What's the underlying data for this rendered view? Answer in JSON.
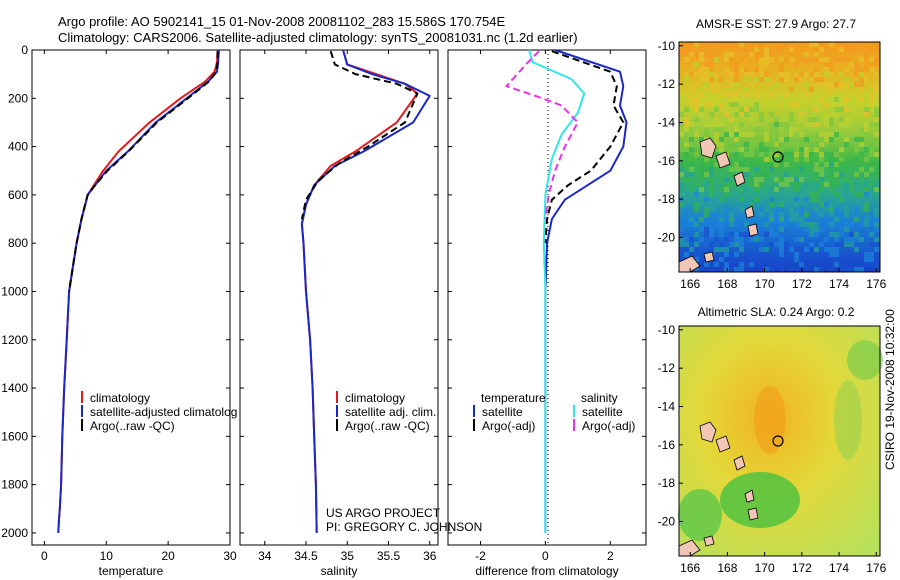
{
  "header": {
    "line1": "Argo profile: AO 5902141_15 01-Nov-2008 20081102_283 15.586S 170.754E",
    "line2": "Climatology: CARS2006. Satellite-adjusted climatology: synTS_20081031.nc (1.2d earlier)"
  },
  "credit": {
    "line1": "US ARGO PROJECT",
    "line2": "PI: GREGORY C. JOHNSON"
  },
  "side_stamp": "CSIRO 19-Nov-2008 10:32:00",
  "colors": {
    "clim": "#e41a1c",
    "sat": "#1a28c8",
    "argo": "#000000",
    "sat_sal": "#33e6e6",
    "argo_sal": "#e633e6"
  },
  "chart_data": [
    {
      "type": "line",
      "xlabel": "temperature",
      "xlim": [
        -2,
        30
      ],
      "ylim": [
        2050,
        0
      ],
      "xticks": [
        0,
        10,
        20,
        30
      ],
      "yticks": [
        0,
        200,
        400,
        600,
        800,
        1000,
        1200,
        1400,
        1600,
        1800,
        2000
      ],
      "legend": {
        "position": "lower-left",
        "entries": [
          "climatology",
          "satellite-adjusted climatolog",
          "Argo(..raw -QC)"
        ]
      },
      "series": [
        {
          "name": "climatology",
          "color": "#e41a1c",
          "x": [
            28.0,
            27.9,
            27.5,
            26.0,
            22.0,
            17.0,
            12.0,
            9.5,
            8.0,
            7.0,
            6.0,
            5.2,
            4.6,
            4.0,
            3.6,
            3.2,
            2.9,
            2.7,
            2.5,
            2.35,
            2.25
          ],
          "y": [
            0,
            50,
            90,
            130,
            200,
            300,
            420,
            500,
            560,
            600,
            700,
            800,
            900,
            1000,
            1200,
            1400,
            1600,
            1800,
            1900,
            1950,
            2000
          ]
        },
        {
          "name": "satellite-adjusted climatology",
          "color": "#1a28c8",
          "x": [
            28.2,
            28.1,
            27.9,
            26.5,
            23.0,
            18.0,
            13.5,
            10.0,
            8.2,
            7.0,
            6.0,
            5.2,
            4.6,
            4.0,
            3.6,
            3.2,
            2.9,
            2.7,
            2.5,
            2.35,
            2.25
          ],
          "y": [
            0,
            50,
            90,
            130,
            200,
            300,
            420,
            500,
            560,
            600,
            700,
            800,
            900,
            1000,
            1200,
            1400,
            1600,
            1800,
            1900,
            1950,
            2000
          ]
        },
        {
          "name": "Argo(..raw -QC)",
          "color": "#000000",
          "dashed": true,
          "x": [
            28.0,
            28.0,
            27.8,
            26.6,
            23.2,
            18.2,
            13.6,
            10.2,
            8.2,
            7.0,
            6.0,
            5.2,
            4.6,
            4.0
          ],
          "y": [
            5,
            50,
            90,
            130,
            200,
            300,
            420,
            500,
            560,
            600,
            700,
            800,
            900,
            1000
          ]
        }
      ]
    },
    {
      "type": "line",
      "xlabel": "salinity",
      "xlim": [
        33.7,
        36.1
      ],
      "ylim": [
        2050,
        0
      ],
      "xticks": [
        34,
        34.5,
        35,
        35.5,
        36
      ],
      "yticks": [
        0,
        200,
        400,
        600,
        800,
        1000,
        1200,
        1400,
        1600,
        1800,
        2000
      ],
      "legend": {
        "position": "lower-right",
        "entries": [
          "climatology",
          "satellite adj. clim.",
          "Argo(..raw -QC)"
        ]
      },
      "series": [
        {
          "name": "climatology",
          "color": "#e41a1c",
          "x": [
            34.95,
            35.0,
            35.35,
            35.7,
            35.85,
            35.6,
            35.1,
            34.8,
            34.6,
            34.5,
            34.45,
            34.47,
            34.5,
            34.55,
            34.58,
            34.6,
            34.62,
            34.63
          ],
          "y": [
            0,
            60,
            100,
            140,
            180,
            300,
            420,
            480,
            560,
            640,
            720,
            800,
            1000,
            1200,
            1400,
            1600,
            1800,
            2000
          ]
        },
        {
          "name": "satellite adj. clim.",
          "color": "#1a28c8",
          "x": [
            34.95,
            35.0,
            35.3,
            35.7,
            36.0,
            35.8,
            35.2,
            34.85,
            34.6,
            34.5,
            34.45,
            34.47,
            34.5,
            34.55,
            34.58,
            34.6,
            34.62,
            34.63
          ],
          "y": [
            0,
            60,
            100,
            140,
            190,
            300,
            420,
            480,
            560,
            640,
            720,
            800,
            1000,
            1200,
            1400,
            1600,
            1800,
            2000
          ]
        },
        {
          "name": "Argo(..raw -QC)",
          "color": "#000000",
          "dashed": true,
          "x": [
            34.8,
            34.85,
            35.1,
            35.6,
            35.85,
            35.7,
            35.25,
            34.9,
            34.65,
            34.5,
            34.45
          ],
          "y": [
            5,
            60,
            100,
            140,
            180,
            300,
            400,
            470,
            540,
            620,
            700
          ]
        }
      ]
    },
    {
      "type": "line",
      "xlabel": "difference from climatology",
      "xlim": [
        -3,
        3.1
      ],
      "ylim": [
        2050,
        0
      ],
      "xticks": [
        -2,
        0,
        2
      ],
      "yticks": [
        0,
        200,
        400,
        600,
        800,
        1000,
        1200,
        1400,
        1600,
        1800,
        2000
      ],
      "legend": {
        "position": "lower-center",
        "headers": [
          "temperature",
          "salinity"
        ],
        "entries": [
          "satellite",
          "Argo(-adj)",
          "satellite",
          "Argo(-adj)"
        ]
      },
      "series": [
        {
          "name": "temperature satellite",
          "color": "#1a28c8",
          "x": [
            0.3,
            2.3,
            2.4,
            2.3,
            2.5,
            2.4,
            2.0,
            1.3,
            0.6,
            0.2,
            0.05,
            0.0,
            0.0
          ],
          "y": [
            0,
            90,
            150,
            230,
            300,
            400,
            500,
            560,
            620,
            700,
            800,
            1000,
            2000
          ]
        },
        {
          "name": "temperature Argo(-adj)",
          "color": "#000000",
          "dashed": true,
          "x": [
            0.2,
            2.0,
            2.2,
            2.1,
            2.4,
            2.0,
            1.4,
            0.7,
            0.2,
            0.05,
            0.0
          ],
          "y": [
            5,
            90,
            150,
            230,
            300,
            400,
            500,
            560,
            620,
            700,
            800
          ]
        },
        {
          "name": "salinity satellite",
          "color": "#33e6e6",
          "x": [
            -0.5,
            -0.4,
            0.8,
            1.2,
            1.0,
            0.5,
            0.2,
            0.0,
            -0.05,
            0.0,
            0.0,
            0.0
          ],
          "y": [
            0,
            50,
            120,
            180,
            260,
            350,
            450,
            600,
            800,
            1000,
            1500,
            2000
          ]
        },
        {
          "name": "salinity Argo(-adj)",
          "color": "#e633e6",
          "dashed": true,
          "x": [
            -0.2,
            -0.6,
            -1.2,
            -0.3,
            0.5,
            1.0,
            0.6,
            0.3,
            0.1,
            0.0
          ],
          "y": [
            5,
            60,
            150,
            190,
            230,
            300,
            400,
            500,
            600,
            700
          ]
        }
      ]
    },
    {
      "type": "heatmap",
      "title": "AMSR-E SST: 27.9 Argo: 27.7",
      "xlim": [
        165.4,
        176.2
      ],
      "ylim": [
        -21.8,
        -9.8
      ],
      "xticks": [
        166,
        168,
        170,
        172,
        174,
        176
      ],
      "yticks": [
        -10,
        -12,
        -14,
        -16,
        -18,
        -20
      ],
      "marker": {
        "lon": 170.754,
        "lat": -15.586
      }
    },
    {
      "type": "heatmap",
      "title": "Altimetric SLA: 0.24 Argo: 0.2",
      "xlim": [
        165.4,
        176.2
      ],
      "ylim": [
        -21.8,
        -9.8
      ],
      "xticks": [
        166,
        168,
        170,
        172,
        174,
        176
      ],
      "yticks": [
        -10,
        -12,
        -14,
        -16,
        -18,
        -20
      ],
      "marker": {
        "lon": 170.754,
        "lat": -15.586
      }
    }
  ]
}
